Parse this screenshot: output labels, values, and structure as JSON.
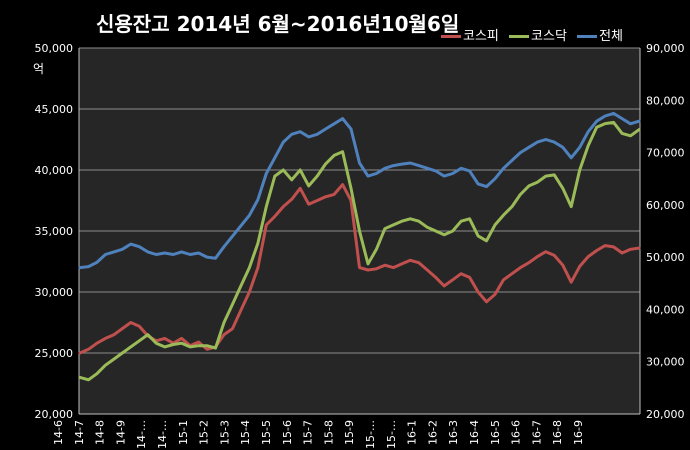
{
  "chart_data": {
    "type": "line",
    "title": "신용잔고 2014년 6월~2016년10월6일",
    "y_left_unit": "억",
    "y_left_lim": [
      20000,
      50000
    ],
    "y_left_ticks": [
      "20,000",
      "25,000",
      "30,000",
      "35,000",
      "40,000",
      "45,000",
      "50,000"
    ],
    "y_right_lim": [
      20000,
      90000
    ],
    "y_right_ticks": [
      "20,000",
      "30,000",
      "40,000",
      "50,000",
      "60,000",
      "70,000",
      "80,000",
      "90,000"
    ],
    "x_ticks": [
      "14-6",
      "14-7",
      "14-8",
      "14-9",
      "14-…",
      "14-…",
      "15-1",
      "15-2",
      "15-3",
      "15-4",
      "15-5",
      "15-6",
      "15-7",
      "15-8",
      "15-9",
      "15-…",
      "15-…",
      "16-1",
      "16-2",
      "16-3",
      "16-4",
      "16-5",
      "16-6",
      "16-7",
      "16-8",
      "16-9"
    ],
    "grid": true,
    "legend_position": "top-right",
    "series": [
      {
        "name": "코스피",
        "axis": "left",
        "color": "#c0504d",
        "values": [
          25000,
          25300,
          25800,
          26200,
          26500,
          27000,
          27500,
          27200,
          26400,
          26000,
          26200,
          25800,
          26200,
          25600,
          25900,
          25300,
          25500,
          26500,
          27000,
          28500,
          30000,
          32000,
          35500,
          36200,
          37000,
          37600,
          38500,
          37200,
          37500,
          37800,
          38000,
          38800,
          37500,
          32000,
          31800,
          31900,
          32200,
          32000,
          32300,
          32600,
          32400,
          31800,
          31200,
          30500,
          31000,
          31500,
          31200,
          30000,
          29200,
          29800,
          31000,
          31500,
          32000,
          32400,
          32900,
          33300,
          33000,
          32200,
          30800,
          32100,
          32900,
          33400,
          33800,
          33700,
          33200,
          33500,
          33600
        ]
      },
      {
        "name": "코스닥",
        "axis": "left",
        "color": "#9bbb59",
        "values": [
          23000,
          22800,
          23300,
          24000,
          24500,
          25000,
          25500,
          26000,
          26500,
          25800,
          25500,
          25700,
          25800,
          25500,
          25600,
          25600,
          25400,
          27500,
          29000,
          30500,
          32000,
          34000,
          37000,
          39500,
          40000,
          39200,
          40000,
          38700,
          39500,
          40500,
          41200,
          41500,
          38500,
          35000,
          32300,
          33500,
          35200,
          35500,
          35800,
          36000,
          35800,
          35300,
          35000,
          34700,
          35000,
          35800,
          36000,
          34600,
          34200,
          35500,
          36300,
          37000,
          38000,
          38700,
          39000,
          39500,
          39600,
          38500,
          37000,
          40000,
          42000,
          43500,
          43800,
          43900,
          43000,
          42800,
          43300
        ]
      },
      {
        "name": "전체",
        "axis": "right",
        "color": "#4f81bd",
        "values": [
          48000,
          48200,
          49000,
          50500,
          51000,
          51500,
          52500,
          52000,
          51000,
          50500,
          50800,
          50500,
          51000,
          50500,
          50800,
          50000,
          49800,
          52000,
          54000,
          56000,
          58000,
          61000,
          66000,
          69000,
          72000,
          73500,
          74000,
          73000,
          73500,
          74500,
          75500,
          76500,
          74500,
          68000,
          65500,
          66000,
          67000,
          67500,
          67800,
          68000,
          67500,
          67000,
          66500,
          65500,
          66000,
          67000,
          66500,
          64000,
          63500,
          65000,
          67000,
          68500,
          70000,
          71000,
          72000,
          72500,
          72000,
          71000,
          69000,
          71000,
          74000,
          76000,
          77000,
          77500,
          76500,
          75500,
          76000
        ]
      }
    ]
  }
}
